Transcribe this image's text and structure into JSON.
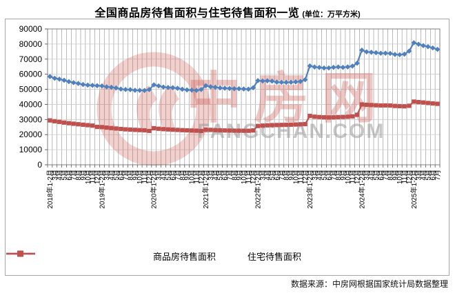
{
  "title": {
    "main": "全国商品房待售面积与住宅待售面积一览",
    "unit": "(单位：万平方米)"
  },
  "watermark": {
    "brand": "中房网",
    "domain": "FANGCHAN.COM",
    "brand_color": "#c94a43",
    "domain_color": "#9b9b9b"
  },
  "source_note": "数据来源：中房网根据国家统计局数据整理",
  "chart_data": {
    "type": "line",
    "title": "全国商品房待售面积与住宅待售面积一览",
    "unit": "万平方米",
    "ylim": [
      0,
      90000
    ],
    "ytick_interval": 10000,
    "yticks": [
      0,
      10000,
      20000,
      30000,
      40000,
      50000,
      60000,
      70000,
      80000,
      90000
    ],
    "grid": {
      "vertical": true,
      "horizontal": true
    },
    "legend_position": "bottom",
    "categories": [
      "2018年1-2月",
      "3月",
      "4月",
      "5月",
      "6月",
      "7月",
      "8月",
      "9月",
      "10月",
      "11月",
      "12月",
      "2019年1-2月",
      "3月",
      "4月",
      "5月",
      "6月",
      "7月",
      "8月",
      "9月",
      "10月",
      "11月",
      "12月",
      "2020年1-2月",
      "3月",
      "4月",
      "5月",
      "6月",
      "7月",
      "8月",
      "9月",
      "10月",
      "11月",
      "12月",
      "2021年1-2月",
      "3月",
      "4月",
      "5月",
      "6月",
      "7月",
      "8月",
      "9月",
      "10月",
      "11月",
      "12月",
      "2022年1-2月",
      "3月",
      "4月",
      "5月",
      "6月",
      "7月",
      "8月",
      "9月",
      "10月",
      "11月",
      "12月",
      "2023年1-2月",
      "3月",
      "4月",
      "5月",
      "6月",
      "7月",
      "8月",
      "9月",
      "10月",
      "11月",
      "12月",
      "2024年1-2月",
      "3月",
      "4月",
      "5月",
      "6月",
      "7月",
      "8月",
      "9月",
      "10月",
      "11月",
      "12月",
      "2025年1-2月",
      "3月",
      "4月",
      "5月",
      "6月",
      "7月"
    ],
    "series": [
      {
        "name": "商品房待售面积",
        "color": "#4F81BD",
        "marker": "diamond",
        "values": [
          58468,
          57329,
          56726,
          56010,
          55083,
          54428,
          53873,
          53191,
          52789,
          52627,
          52414,
          52251,
          51646,
          51380,
          50928,
          50162,
          49876,
          49784,
          49346,
          49323,
          49221,
          49821,
          52985,
          52255,
          51512,
          51184,
          51083,
          50691,
          50052,
          49614,
          49492,
          49287,
          49850,
          52425,
          51727,
          51380,
          50928,
          50738,
          50583,
          50411,
          50385,
          50203,
          50092,
          51023,
          55743,
          55521,
          55644,
          55433,
          54784,
          54655,
          54605,
          54703,
          54912,
          55203,
          56366,
          65528,
          64770,
          64487,
          64120,
          64159,
          64564,
          64795,
          64537,
          64835,
          65385,
          67295,
          75969,
          74833,
          74553,
          74256,
          73894,
          73926,
          73783,
          73111,
          72920,
          73286,
          75327,
          80864,
          79875,
          78934,
          78286,
          77432,
          76486
        ]
      },
      {
        "name": "住宅待售面积",
        "color": "#C0504D",
        "marker": "square",
        "values": [
          29400,
          28850,
          28400,
          27950,
          27550,
          27200,
          26850,
          26550,
          26250,
          25950,
          25091,
          24962,
          24618,
          24312,
          24026,
          23726,
          23480,
          23310,
          23140,
          22980,
          22820,
          22473,
          24193,
          23865,
          23610,
          23410,
          23250,
          23090,
          22940,
          22800,
          22690,
          22590,
          22379,
          23244,
          23090,
          22940,
          22820,
          22730,
          22660,
          22610,
          22570,
          22540,
          22520,
          22761,
          25699,
          25954,
          26133,
          26260,
          26340,
          26410,
          26480,
          26570,
          26680,
          26810,
          26947,
          32371,
          31833,
          31640,
          31450,
          31380,
          31420,
          31560,
          31680,
          31830,
          32080,
          33119,
          39980,
          39750,
          39580,
          39420,
          39290,
          39330,
          39260,
          38990,
          38860,
          38740,
          39088,
          41855,
          41520,
          41269,
          40942,
          40650,
          40389
        ]
      }
    ]
  }
}
